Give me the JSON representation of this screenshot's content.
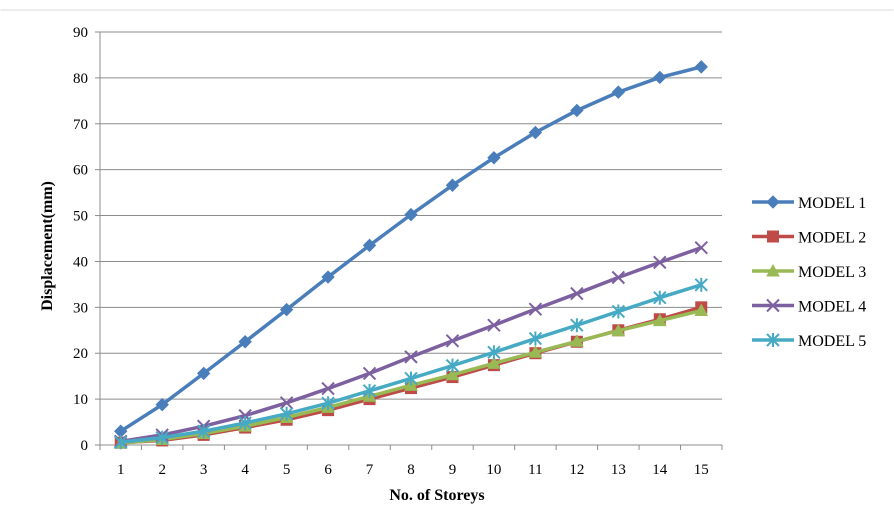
{
  "chart_data": {
    "type": "line",
    "xlabel": "No. of Storeys",
    "ylabel": "Displacement(mm)",
    "x": [
      1,
      2,
      3,
      4,
      5,
      6,
      7,
      8,
      9,
      10,
      11,
      12,
      13,
      14,
      15
    ],
    "ylim": [
      0,
      90
    ],
    "yticks": [
      0,
      10,
      20,
      30,
      40,
      50,
      60,
      70,
      80,
      90
    ],
    "grid": "horizontal",
    "legend_position": "right",
    "series": [
      {
        "name": "MODEL 1",
        "color": "#4a7ebb",
        "marker": "diamond",
        "values": [
          3,
          8.8,
          15.6,
          22.5,
          29.5,
          36.6,
          43.5,
          50.2,
          56.6,
          62.6,
          68.1,
          72.9,
          76.9,
          80.1,
          82.4
        ]
      },
      {
        "name": "MODEL 2",
        "color": "#be4b48",
        "marker": "square",
        "values": [
          0.5,
          1.0,
          2.2,
          3.8,
          5.5,
          7.6,
          10.0,
          12.4,
          14.8,
          17.4,
          20.0,
          22.5,
          25.0,
          27.4,
          30.0
        ]
      },
      {
        "name": "MODEL 3",
        "color": "#98b954",
        "marker": "triangle",
        "values": [
          0.4,
          1.2,
          2.5,
          4.1,
          6.0,
          8.2,
          10.6,
          13.0,
          15.3,
          17.8,
          20.2,
          22.6,
          24.9,
          27.1,
          29.3
        ]
      },
      {
        "name": "MODEL 4",
        "color": "#7d60a0",
        "marker": "x",
        "values": [
          0.8,
          2.2,
          4.1,
          6.4,
          9.2,
          12.3,
          15.6,
          19.2,
          22.7,
          26.1,
          29.6,
          33.0,
          36.5,
          39.8,
          43.0
        ]
      },
      {
        "name": "MODEL 5",
        "color": "#46aac5",
        "marker": "asterisk",
        "values": [
          0.6,
          1.6,
          3.0,
          4.8,
          6.8,
          9.1,
          11.8,
          14.5,
          17.3,
          20.2,
          23.2,
          26.1,
          29.1,
          32.1,
          34.9
        ]
      }
    ]
  }
}
